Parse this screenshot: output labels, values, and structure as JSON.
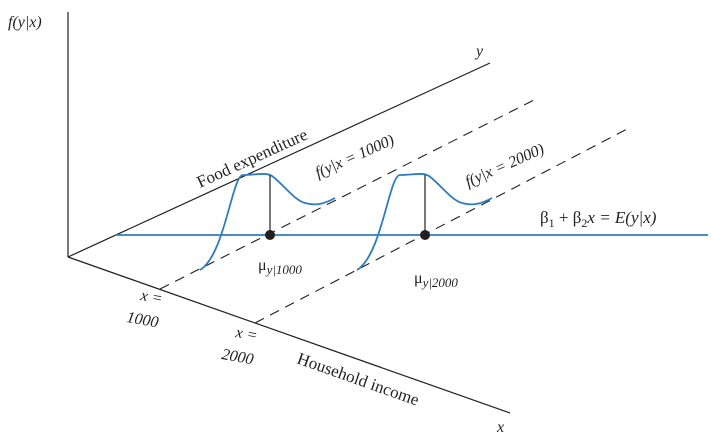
{
  "diagram": {
    "axis_labels": {
      "vertical": "f(y|x)",
      "y_axis": "y",
      "x_axis": "x",
      "food": "Food expenditure",
      "income": "Household income"
    },
    "x_ticks": [
      {
        "top": "x =",
        "bottom": "1000"
      },
      {
        "top": "x =",
        "bottom": "2000"
      }
    ],
    "densities": [
      {
        "label": "f(y|x = 1000)",
        "mean_label_base": "μ",
        "mean_label_sub": "y|1000"
      },
      {
        "label": "f(y|x = 2000)",
        "mean_label_base": "μ",
        "mean_label_sub": "y|2000"
      }
    ],
    "regression_line": {
      "label_beta1": "β",
      "sub1": "1",
      "label_plus": " + ",
      "label_beta2": "β",
      "sub2": "2",
      "label_rest": "x = E(y|x)"
    },
    "colors": {
      "curve": "#2f7bbf",
      "ink": "#231f20"
    }
  }
}
